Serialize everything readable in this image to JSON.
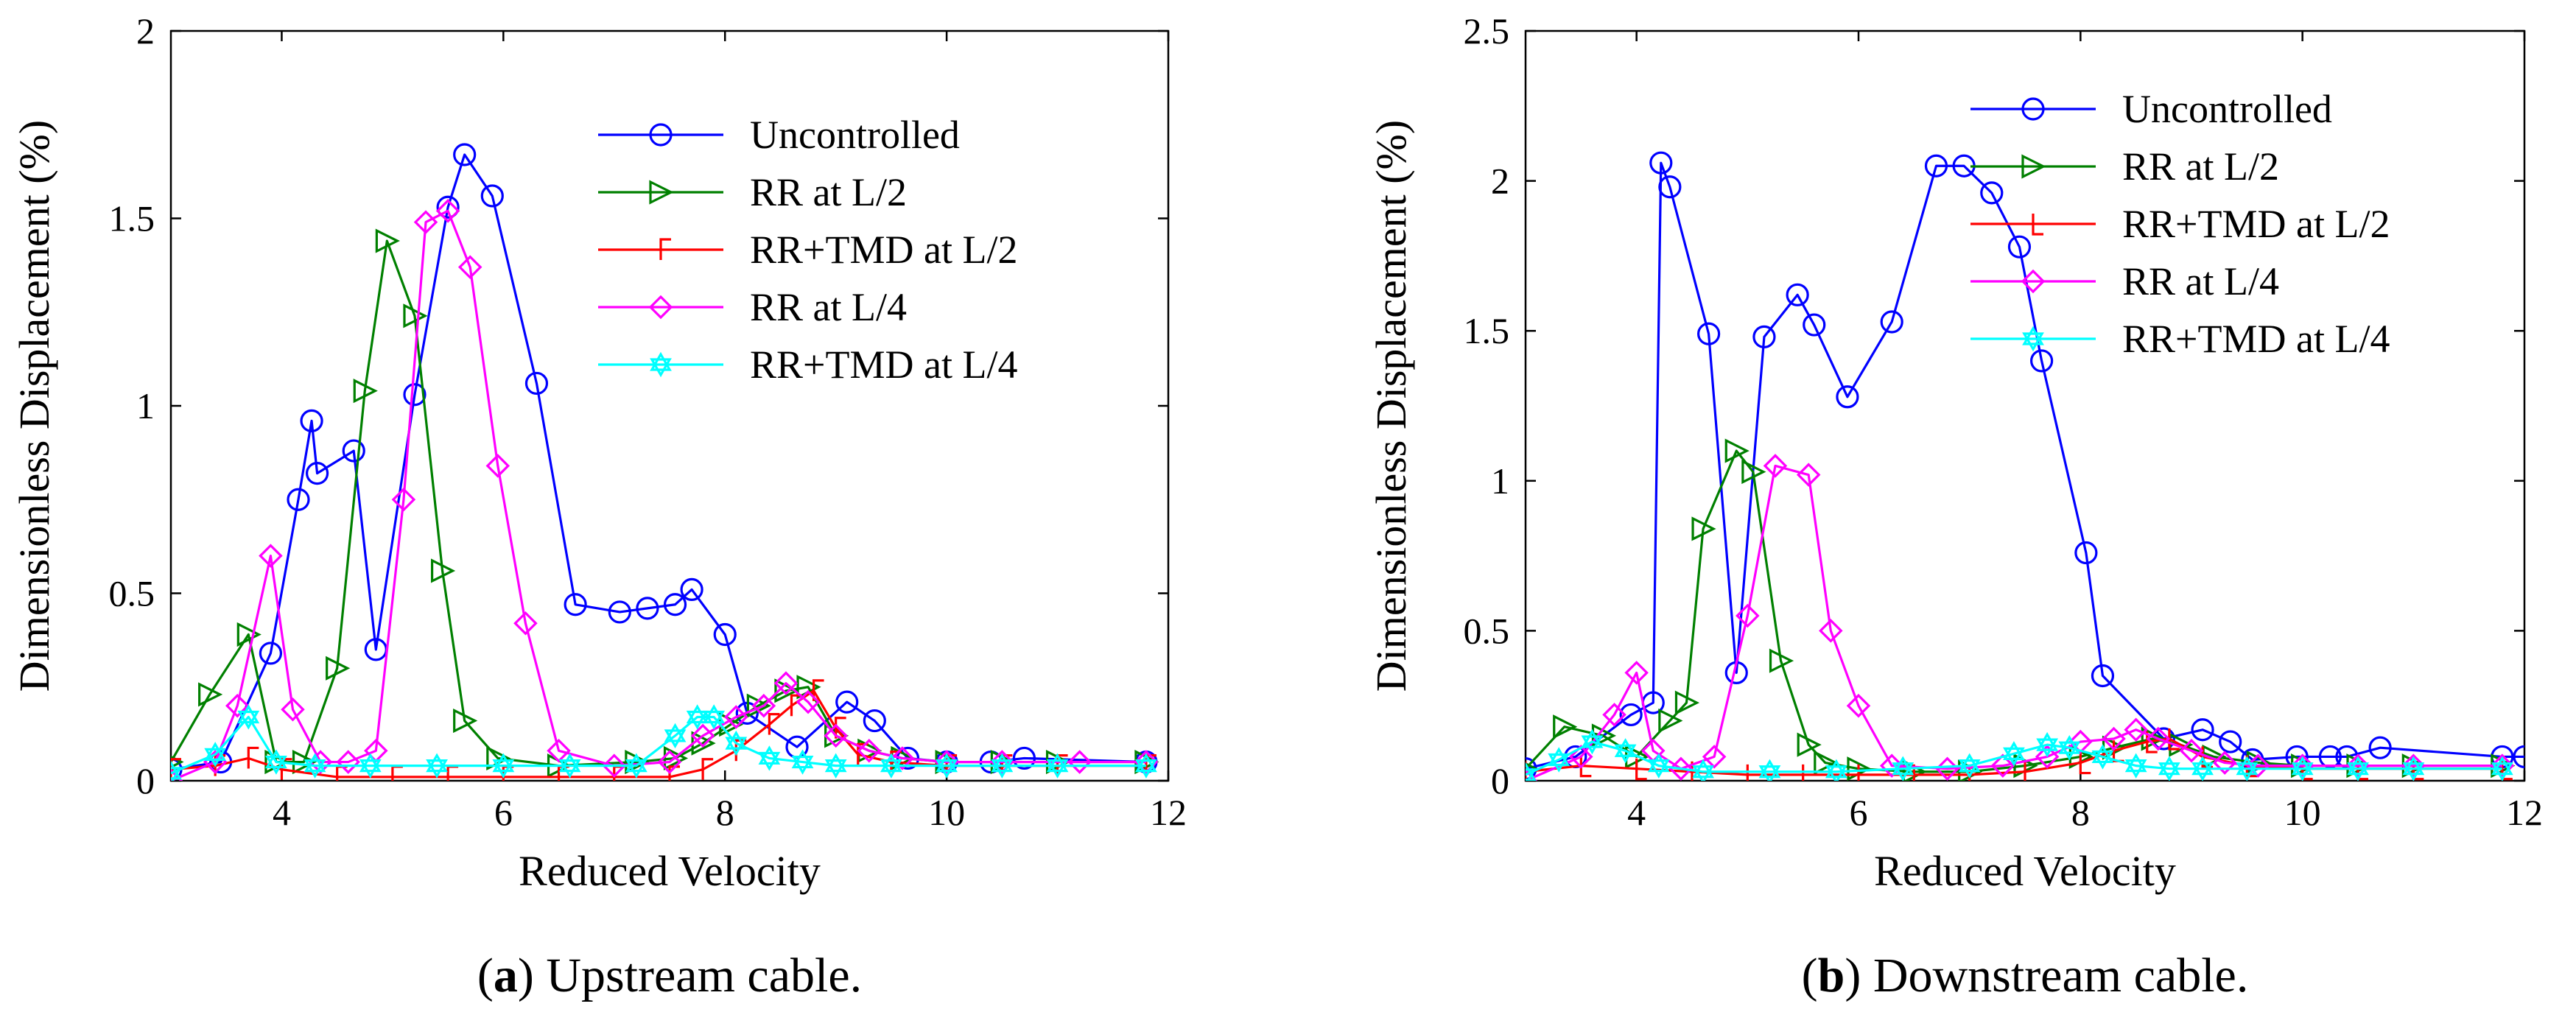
{
  "panels": [
    {
      "id": "a",
      "caption": {
        "open": "(",
        "letter": "a",
        "rest": ") Upstream cable."
      }
    },
    {
      "id": "b",
      "caption": {
        "open": "(",
        "letter": "b",
        "rest": ") Downstream cable."
      }
    }
  ],
  "chart_data": [
    {
      "type": "line",
      "title": "",
      "xlabel": "Reduced Velocity",
      "ylabel": "Dimensionless Displacement (%)",
      "xlim": [
        3,
        12
      ],
      "ylim": [
        0,
        2
      ],
      "xticks": [
        4,
        6,
        8,
        10,
        12
      ],
      "yticks": [
        0,
        0.5,
        1,
        1.5,
        2
      ],
      "ytick_labels": [
        "0",
        "0.5",
        "1",
        "1.5",
        "2"
      ],
      "legend_position": "top-right",
      "series": [
        {
          "name": "Uncontrolled",
          "color": "#0000ff",
          "marker": "circle",
          "x": [
            3.0,
            3.45,
            3.9,
            4.15,
            4.27,
            4.32,
            4.65,
            4.85,
            5.2,
            5.5,
            5.65,
            5.9,
            6.3,
            6.65,
            7.05,
            7.3,
            7.55,
            7.7,
            8.0,
            8.2,
            8.65,
            9.1,
            9.35,
            9.65,
            10.0,
            10.4,
            10.7,
            11.8
          ],
          "y": [
            0.03,
            0.05,
            0.34,
            0.75,
            0.96,
            0.82,
            0.88,
            0.35,
            1.03,
            1.53,
            1.67,
            1.56,
            1.06,
            0.47,
            0.45,
            0.46,
            0.47,
            0.51,
            0.39,
            0.18,
            0.09,
            0.21,
            0.16,
            0.06,
            0.05,
            0.05,
            0.06,
            0.05
          ]
        },
        {
          "name": "RR at L/2",
          "color": "#008000",
          "marker": "triangle-right",
          "x": [
            3.0,
            3.35,
            3.7,
            3.95,
            4.2,
            4.5,
            4.75,
            4.95,
            5.2,
            5.45,
            5.65,
            5.95,
            6.5,
            7.2,
            7.55,
            7.8,
            8.05,
            8.3,
            8.55,
            8.75,
            9.0,
            9.3,
            9.6,
            10.0,
            10.5,
            11.0,
            11.8
          ],
          "y": [
            0.05,
            0.23,
            0.39,
            0.05,
            0.05,
            0.3,
            1.04,
            1.44,
            1.24,
            0.56,
            0.16,
            0.06,
            0.04,
            0.05,
            0.06,
            0.1,
            0.15,
            0.2,
            0.24,
            0.25,
            0.12,
            0.08,
            0.06,
            0.05,
            0.05,
            0.05,
            0.05
          ]
        },
        {
          "name": "RR+TMD at L/2",
          "color": "#ff0000",
          "marker": "square-corner",
          "x": [
            3.0,
            3.4,
            3.7,
            4.0,
            4.5,
            5.0,
            5.5,
            6.0,
            6.5,
            7.0,
            7.5,
            7.8,
            8.1,
            8.4,
            8.6,
            8.8,
            9.0,
            9.2,
            9.5,
            10.0,
            10.5,
            11.0,
            11.8
          ],
          "y": [
            0.03,
            0.04,
            0.06,
            0.03,
            0.01,
            0.01,
            0.01,
            0.01,
            0.01,
            0.01,
            0.01,
            0.03,
            0.08,
            0.15,
            0.2,
            0.24,
            0.14,
            0.07,
            0.05,
            0.04,
            0.04,
            0.04,
            0.04
          ]
        },
        {
          "name": "RR at L/4",
          "color": "#ff00ff",
          "marker": "diamond",
          "x": [
            3.0,
            3.4,
            3.6,
            3.9,
            4.1,
            4.35,
            4.6,
            4.85,
            5.1,
            5.3,
            5.5,
            5.7,
            5.95,
            6.2,
            6.5,
            7.0,
            7.5,
            7.8,
            8.1,
            8.35,
            8.55,
            8.75,
            9.0,
            9.3,
            9.6,
            10.0,
            10.5,
            11.2,
            11.8
          ],
          "y": [
            0.0,
            0.05,
            0.2,
            0.6,
            0.19,
            0.05,
            0.05,
            0.08,
            0.75,
            1.49,
            1.52,
            1.37,
            0.84,
            0.42,
            0.08,
            0.04,
            0.05,
            0.12,
            0.17,
            0.2,
            0.26,
            0.21,
            0.12,
            0.08,
            0.06,
            0.05,
            0.05,
            0.05,
            0.05
          ]
        },
        {
          "name": "RR+TMD at L/4",
          "color": "#00ffff",
          "marker": "hexagram",
          "x": [
            3.0,
            3.4,
            3.7,
            3.95,
            4.3,
            4.8,
            5.4,
            6.0,
            6.6,
            7.2,
            7.55,
            7.75,
            7.9,
            8.1,
            8.4,
            8.7,
            9.0,
            9.5,
            10.0,
            10.5,
            11.0,
            11.8
          ],
          "y": [
            0.02,
            0.07,
            0.17,
            0.05,
            0.04,
            0.04,
            0.04,
            0.04,
            0.04,
            0.04,
            0.12,
            0.17,
            0.17,
            0.1,
            0.06,
            0.05,
            0.04,
            0.04,
            0.04,
            0.04,
            0.04,
            0.04
          ]
        }
      ]
    },
    {
      "type": "line",
      "title": "",
      "xlabel": "Reduced Velocity",
      "ylabel": "Dimensionless Displacement (%)",
      "xlim": [
        3,
        12
      ],
      "ylim": [
        0,
        2.5
      ],
      "xticks": [
        4,
        6,
        8,
        10,
        12
      ],
      "yticks": [
        0,
        0.5,
        1,
        1.5,
        2,
        2.5
      ],
      "ytick_labels": [
        "0",
        "0.5",
        "1",
        "1.5",
        "2",
        "2.5"
      ],
      "legend_position": "top-right",
      "series": [
        {
          "name": "Uncontrolled",
          "color": "#0000ff",
          "marker": "circle",
          "x": [
            3.0,
            3.45,
            3.95,
            4.15,
            4.22,
            4.3,
            4.65,
            4.9,
            5.15,
            5.45,
            5.6,
            5.9,
            6.3,
            6.7,
            6.95,
            7.2,
            7.45,
            7.65,
            8.05,
            8.2,
            8.75,
            9.1,
            9.35,
            9.55,
            9.95,
            10.25,
            10.4,
            10.7,
            11.8,
            12.0
          ],
          "y": [
            0.04,
            0.08,
            0.22,
            0.26,
            2.06,
            1.98,
            1.49,
            0.36,
            1.48,
            1.62,
            1.52,
            1.28,
            1.53,
            2.05,
            2.05,
            1.96,
            1.78,
            1.4,
            0.76,
            0.35,
            0.14,
            0.17,
            0.13,
            0.07,
            0.08,
            0.08,
            0.08,
            0.11,
            0.08,
            0.08
          ]
        },
        {
          "name": "RR at L/2",
          "color": "#008000",
          "marker": "triangle-right",
          "x": [
            3.0,
            3.35,
            3.7,
            4.0,
            4.3,
            4.45,
            4.6,
            4.9,
            5.05,
            5.3,
            5.55,
            5.7,
            6.0,
            6.5,
            7.0,
            7.5,
            8.0,
            8.3,
            8.65,
            8.9,
            9.2,
            9.6,
            10.0,
            10.5,
            11.0,
            11.8
          ],
          "y": [
            0.04,
            0.18,
            0.15,
            0.08,
            0.2,
            0.26,
            0.84,
            1.1,
            1.03,
            0.4,
            0.12,
            0.06,
            0.04,
            0.03,
            0.03,
            0.05,
            0.08,
            0.11,
            0.14,
            0.12,
            0.08,
            0.06,
            0.05,
            0.05,
            0.05,
            0.05
          ]
        },
        {
          "name": "RR+TMD at L/2",
          "color": "#ff0000",
          "marker": "t-down",
          "x": [
            3.0,
            3.5,
            4.0,
            4.5,
            5.0,
            5.5,
            6.0,
            6.5,
            7.0,
            7.5,
            8.0,
            8.3,
            8.6,
            8.8,
            9.1,
            9.5,
            10.0,
            10.5,
            11.0,
            11.8
          ],
          "y": [
            0.03,
            0.05,
            0.04,
            0.03,
            0.02,
            0.02,
            0.02,
            0.02,
            0.02,
            0.03,
            0.06,
            0.1,
            0.13,
            0.14,
            0.08,
            0.05,
            0.04,
            0.04,
            0.04,
            0.04
          ]
        },
        {
          "name": "RR at L/4",
          "color": "#ff00ff",
          "marker": "diamond",
          "x": [
            3.0,
            3.5,
            3.8,
            4.0,
            4.15,
            4.4,
            4.7,
            5.0,
            5.25,
            5.55,
            5.75,
            6.0,
            6.3,
            6.8,
            7.3,
            7.7,
            8.0,
            8.3,
            8.5,
            8.7,
            9.0,
            9.3,
            9.6,
            10.0,
            10.5,
            11.0,
            11.8
          ],
          "y": [
            0.0,
            0.08,
            0.22,
            0.36,
            0.1,
            0.04,
            0.08,
            0.55,
            1.05,
            1.02,
            0.5,
            0.25,
            0.05,
            0.04,
            0.05,
            0.08,
            0.13,
            0.14,
            0.17,
            0.14,
            0.1,
            0.06,
            0.05,
            0.05,
            0.05,
            0.05,
            0.05
          ]
        },
        {
          "name": "RR+TMD at L/4",
          "color": "#00ffff",
          "marker": "hexagram",
          "x": [
            3.0,
            3.3,
            3.6,
            3.9,
            4.2,
            4.6,
            5.2,
            5.8,
            6.4,
            7.0,
            7.4,
            7.7,
            7.9,
            8.2,
            8.5,
            8.8,
            9.1,
            9.5,
            10.0,
            10.5,
            11.0,
            11.8
          ],
          "y": [
            0.02,
            0.07,
            0.13,
            0.1,
            0.05,
            0.03,
            0.03,
            0.03,
            0.04,
            0.05,
            0.09,
            0.12,
            0.11,
            0.08,
            0.05,
            0.04,
            0.04,
            0.04,
            0.04,
            0.04,
            0.04,
            0.04
          ]
        }
      ]
    }
  ]
}
